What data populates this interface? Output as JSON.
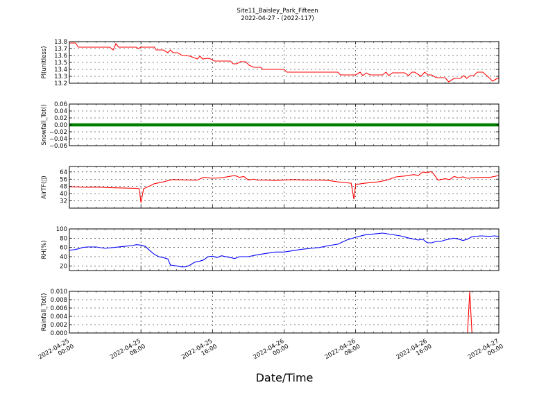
{
  "figure": {
    "title": "Site11_Baisley_Park_Fifteen",
    "subtitle": "2022-04-27 - (2022-117)",
    "xlabel": "Date/Time",
    "x_ticks": [
      "2022-04-25\n00:00",
      "2022-04-25\n08:00",
      "2022-04-25\n16:00",
      "2022-04-26\n00:00",
      "2022-04-26\n08:00",
      "2022-04-26\n16:00",
      "2022-04-27\n00:00"
    ]
  },
  "colors": {
    "red": "#ff0000",
    "green": "#008000",
    "blue": "#0000ff",
    "grid": "#000000"
  },
  "chart_data": [
    {
      "type": "line",
      "id": "plim",
      "ylabel": "Pl(unitless)",
      "xlim": [
        0,
        48
      ],
      "ylim": [
        13.2,
        13.8
      ],
      "yticks": [
        13.2,
        13.3,
        13.4,
        13.5,
        13.6,
        13.7,
        13.8
      ],
      "ytick_labels": [
        "13.2",
        "13.3",
        "13.4",
        "13.5",
        "13.6",
        "13.7",
        "13.8"
      ],
      "grid": true,
      "color": "red",
      "series": [
        {
          "x": [
            0,
            0.7,
            1.0,
            1.4,
            2.5,
            4.5,
            4.9,
            5.2,
            5.5,
            6.0,
            7.5,
            7.7,
            8.0,
            9.5,
            9.7,
            10.5,
            11.0,
            11.3,
            11.6,
            12.1,
            12.6,
            12.9,
            13.5,
            14.3,
            14.6,
            14.9,
            15.5,
            15.8,
            16.2,
            18.0,
            18.3,
            18.7,
            19.1,
            19.7,
            20.1,
            20.6,
            21.4,
            21.6,
            23.0,
            24.0,
            24.3,
            26.0,
            28.0,
            28.5,
            30.0,
            30.3,
            32.0,
            32.5,
            32.8,
            33.2,
            33.6,
            35.0,
            35.4,
            35.7,
            36.1,
            37.5,
            37.9,
            38.3,
            38.6,
            39.3,
            39.7,
            40.1,
            40.5,
            41.0,
            41.3,
            42.0,
            42.4,
            43.0,
            43.4,
            43.7,
            44.1,
            44.4,
            44.8,
            45.2,
            45.6,
            46.2,
            47.0,
            47.3,
            47.7,
            48.0
          ],
          "y": [
            13.78,
            13.78,
            13.72,
            13.72,
            13.72,
            13.72,
            13.68,
            13.77,
            13.72,
            13.72,
            13.72,
            13.7,
            13.72,
            13.72,
            13.68,
            13.68,
            13.64,
            13.68,
            13.64,
            13.64,
            13.6,
            13.6,
            13.59,
            13.55,
            13.59,
            13.55,
            13.56,
            13.55,
            13.52,
            13.52,
            13.48,
            13.48,
            13.51,
            13.51,
            13.46,
            13.43,
            13.43,
            13.4,
            13.4,
            13.4,
            13.36,
            13.36,
            13.36,
            13.36,
            13.36,
            13.32,
            13.32,
            13.36,
            13.31,
            13.35,
            13.32,
            13.32,
            13.36,
            13.31,
            13.35,
            13.35,
            13.31,
            13.36,
            13.36,
            13.3,
            13.36,
            13.32,
            13.32,
            13.28,
            13.28,
            13.28,
            13.22,
            13.27,
            13.27,
            13.27,
            13.31,
            13.27,
            13.31,
            13.31,
            13.36,
            13.36,
            13.27,
            13.23,
            13.26,
            13.28
          ]
        }
      ]
    },
    {
      "type": "line",
      "id": "snowfall",
      "ylabel": "Snowfall_Tot()",
      "xlim": [
        0,
        48
      ],
      "ylim": [
        -0.06,
        0.06
      ],
      "yticks": [
        -0.06,
        -0.04,
        -0.02,
        0.0,
        0.02,
        0.04,
        0.06
      ],
      "ytick_labels": [
        "−0.06",
        "−0.04",
        "−0.02",
        "0.00",
        "0.02",
        "0.04",
        "0.06"
      ],
      "grid": true,
      "color": "green",
      "series": [
        {
          "x": [
            0,
            48
          ],
          "y": [
            0,
            0
          ]
        }
      ]
    },
    {
      "type": "line",
      "id": "airtf",
      "ylabel": "AirTF(\u0000)",
      "xlim": [
        0,
        48
      ],
      "ylim": [
        24,
        70
      ],
      "yticks": [
        32,
        40,
        48,
        56,
        64
      ],
      "ytick_labels": [
        "32",
        "40",
        "48",
        "56",
        "64"
      ],
      "grid": true,
      "color": "red",
      "series": [
        {
          "x": [
            0,
            2,
            3,
            5,
            7,
            7.6,
            7.8,
            8.0,
            8.3,
            9.0,
            9.5,
            10.5,
            11.5,
            12.5,
            13.5,
            14.3,
            15.0,
            15.5,
            16.0,
            17.0,
            18.5,
            19.0,
            19.5,
            20.0,
            20.6,
            21.0,
            22,
            23,
            24,
            25,
            26,
            27,
            28,
            29,
            30,
            31,
            31.5,
            31.8,
            32.0,
            32.3,
            33.0,
            34.5,
            35.0,
            35.5,
            36.5,
            37.5,
            38.5,
            39.0,
            39.5,
            40.0,
            40.4,
            40.7,
            41.2,
            42.0,
            42.5,
            43.0,
            43.5,
            44.0,
            44.5,
            45.0,
            46,
            47,
            48
          ],
          "y": [
            47.5,
            47.0,
            47.2,
            46.5,
            46.0,
            45.8,
            45.5,
            30.0,
            45.5,
            48.5,
            51.0,
            53.0,
            55.5,
            55.2,
            55.0,
            55.0,
            58.0,
            57.5,
            57.0,
            57.5,
            60.0,
            58.0,
            59.0,
            55.0,
            56.0,
            55.0,
            55.0,
            54.5,
            55.0,
            55.5,
            55.0,
            55.0,
            55.0,
            54.5,
            53.0,
            52.0,
            51.5,
            34.0,
            50.5,
            50.5,
            51.5,
            53.0,
            54.0,
            55.0,
            58.5,
            59.5,
            61.0,
            60.0,
            64.0,
            63.0,
            64.5,
            62.0,
            55.0,
            56.5,
            55.5,
            59.0,
            57.5,
            58.5,
            57.0,
            57.5,
            58.0,
            58.0,
            60.0
          ]
        }
      ]
    },
    {
      "type": "line",
      "id": "rh",
      "ylabel": "RH(%)",
      "xlim": [
        0,
        48
      ],
      "ylim": [
        10,
        100
      ],
      "yticks": [
        20,
        40,
        60,
        80,
        100
      ],
      "ytick_labels": [
        "20",
        "40",
        "60",
        "80",
        "100"
      ],
      "grid": true,
      "color": "blue",
      "series": [
        {
          "x": [
            0,
            0.5,
            1.0,
            1.5,
            2.0,
            3.0,
            4.0,
            5.0,
            6.0,
            7.0,
            7.5,
            8.0,
            8.5,
            9.0,
            9.5,
            10.0,
            10.5,
            11.0,
            11.3,
            11.6,
            12.0,
            12.5,
            13.0,
            13.5,
            14.0,
            14.5,
            15.0,
            15.5,
            16.0,
            16.5,
            17.0,
            18.0,
            18.5,
            19.0,
            20.0,
            21.0,
            22.0,
            23.0,
            24.0,
            25.0,
            26.0,
            27.0,
            28.0,
            29.0,
            30.0,
            31.0,
            32.0,
            33.0,
            34.0,
            35.0,
            36.0,
            37.0,
            38.0,
            39.0,
            39.5,
            40.0,
            40.5,
            41.0,
            41.5,
            42.0,
            43.0,
            43.5,
            44.0,
            44.5,
            45.0,
            46.0,
            47.0,
            47.5,
            48.0
          ],
          "y": [
            54,
            55,
            57,
            60,
            61,
            61,
            58,
            60,
            62,
            64,
            66,
            65,
            62,
            53,
            45,
            40,
            38,
            35,
            22,
            21,
            20,
            18,
            18,
            22,
            28,
            30,
            33,
            40,
            41,
            38,
            42,
            38,
            36,
            40,
            40,
            44,
            47,
            50,
            50,
            53,
            56,
            58,
            60,
            64,
            67,
            76,
            82,
            87,
            89,
            91,
            88,
            85,
            80,
            76,
            78,
            70,
            70,
            73,
            73,
            76,
            80,
            78,
            75,
            78,
            83,
            85,
            84,
            85,
            84
          ]
        }
      ]
    },
    {
      "type": "line",
      "id": "rainfall",
      "ylabel": "Rainfall_Tot()",
      "xlim": [
        0,
        48
      ],
      "ylim": [
        0,
        0.01
      ],
      "yticks": [
        0.0,
        0.002,
        0.004,
        0.006,
        0.008,
        0.01
      ],
      "ytick_labels": [
        "0.000",
        "0.002",
        "0.004",
        "0.006",
        "0.008",
        "0.010"
      ],
      "grid": true,
      "color": "red",
      "series": [
        {
          "x": [
            0,
            44.5,
            44.75,
            45.0,
            48
          ],
          "y": [
            0,
            0,
            0.01,
            0,
            0
          ]
        }
      ]
    }
  ]
}
